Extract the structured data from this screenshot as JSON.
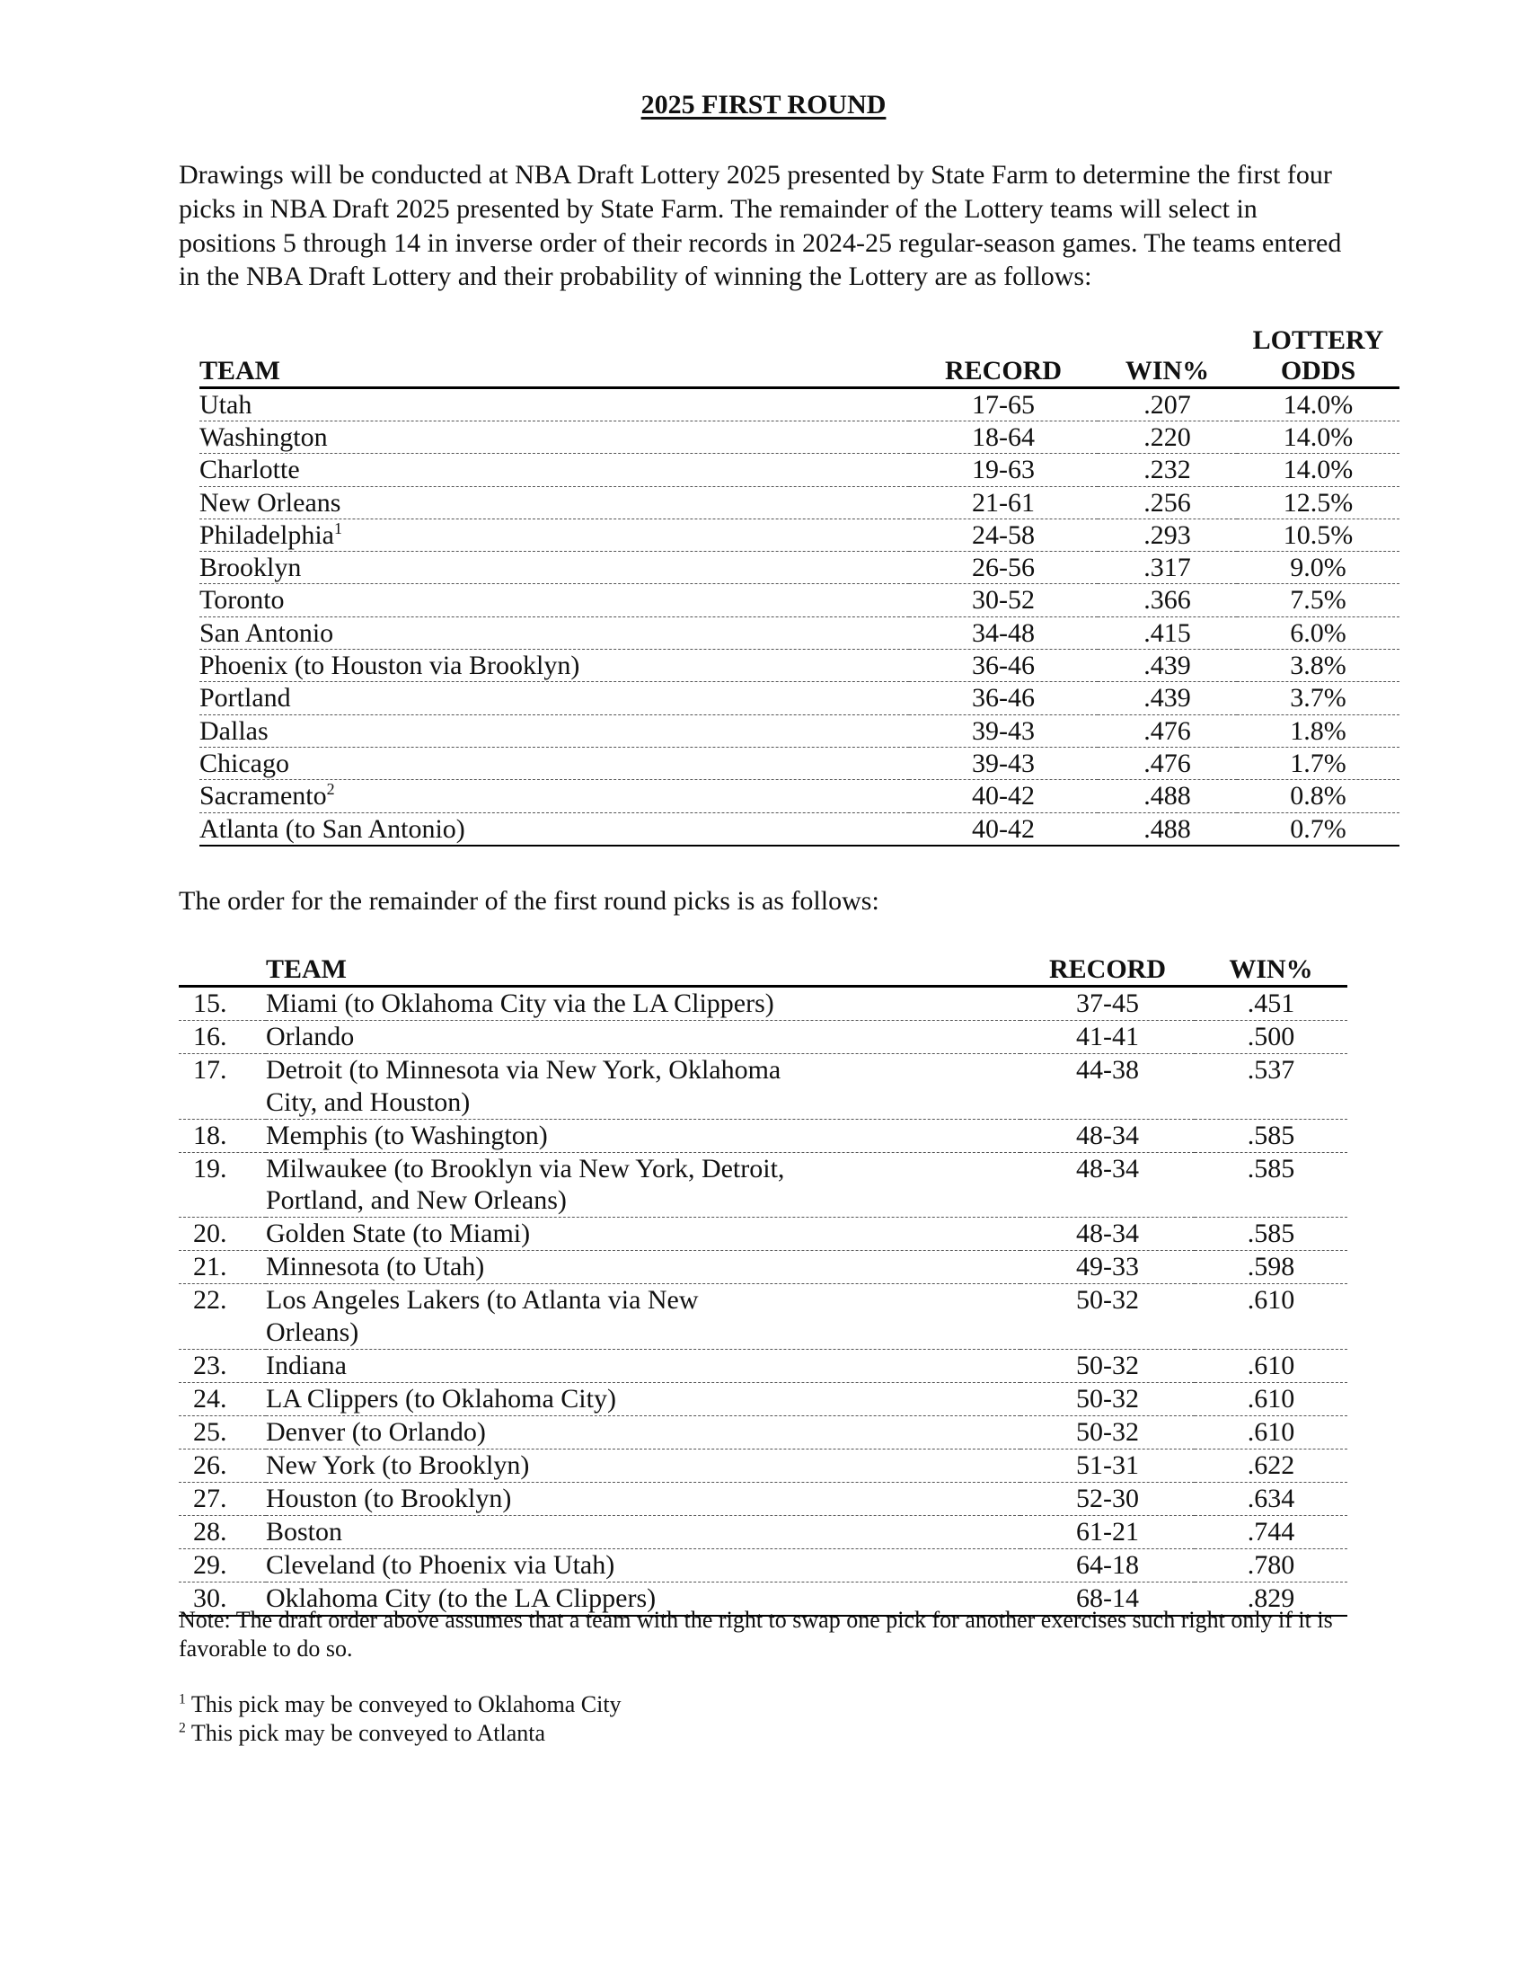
{
  "title": "2025 FIRST ROUND",
  "intro": "Drawings will be conducted at NBA Draft Lottery 2025 presented by State Farm to determine the first four picks in NBA Draft 2025 presented by State Farm. The remainder of the Lottery teams will select in positions 5 through 14 in inverse order of their records in 2024-25 regular-season games. The teams entered in the NBA Draft Lottery and their probability of winning the Lottery are as follows:",
  "lottery_table": {
    "headers": {
      "team": "TEAM",
      "record": "RECORD",
      "win": "WIN%",
      "odds_line1": "LOTTERY",
      "odds_line2": "ODDS"
    },
    "rows": [
      {
        "team": "Utah",
        "sup": "",
        "record": "17-65",
        "win": ".207",
        "odds": "14.0%"
      },
      {
        "team": "Washington",
        "sup": "",
        "record": "18-64",
        "win": ".220",
        "odds": "14.0%"
      },
      {
        "team": "Charlotte",
        "sup": "",
        "record": "19-63",
        "win": ".232",
        "odds": "14.0%"
      },
      {
        "team": "New Orleans",
        "sup": "",
        "record": "21-61",
        "win": ".256",
        "odds": "12.5%"
      },
      {
        "team": "Philadelphia",
        "sup": "1",
        "record": "24-58",
        "win": ".293",
        "odds": "10.5%"
      },
      {
        "team": "Brooklyn",
        "sup": "",
        "record": "26-56",
        "win": ".317",
        "odds": "9.0%"
      },
      {
        "team": "Toronto",
        "sup": "",
        "record": "30-52",
        "win": ".366",
        "odds": "7.5%"
      },
      {
        "team": "San Antonio",
        "sup": "",
        "record": "34-48",
        "win": ".415",
        "odds": "6.0%"
      },
      {
        "team": "Phoenix (to Houston via Brooklyn)",
        "sup": "",
        "record": "36-46",
        "win": ".439",
        "odds": "3.8%"
      },
      {
        "team": "Portland",
        "sup": "",
        "record": "36-46",
        "win": ".439",
        "odds": "3.7%"
      },
      {
        "team": "Dallas",
        "sup": "",
        "record": "39-43",
        "win": ".476",
        "odds": "1.8%"
      },
      {
        "team": "Chicago",
        "sup": "",
        "record": "39-43",
        "win": ".476",
        "odds": "1.7%"
      },
      {
        "team": "Sacramento",
        "sup": "2",
        "record": "40-42",
        "win": ".488",
        "odds": "0.8%"
      },
      {
        "team": "Atlanta (to San Antonio)",
        "sup": "",
        "record": "40-42",
        "win": ".488",
        "odds": "0.7%"
      }
    ]
  },
  "order_intro": "The order for the remainder of the first round picks is as follows:",
  "order_table": {
    "headers": {
      "team": "TEAM",
      "record": "RECORD",
      "win": "WIN%"
    },
    "rows": [
      {
        "pick": "15.",
        "team": "Miami (to Oklahoma City via the LA Clippers)",
        "record": "37-45",
        "win": ".451"
      },
      {
        "pick": "16.",
        "team": "Orlando",
        "record": "41-41",
        "win": ".500"
      },
      {
        "pick": "17.",
        "team": "Detroit (to Minnesota via New York, Oklahoma City, and Houston)",
        "record": "44-38",
        "win": ".537"
      },
      {
        "pick": "18.",
        "team": "Memphis (to Washington)",
        "record": "48-34",
        "win": ".585"
      },
      {
        "pick": "19.",
        "team": "Milwaukee (to Brooklyn via New York, Detroit, Portland, and New Orleans)",
        "record": "48-34",
        "win": ".585"
      },
      {
        "pick": "20.",
        "team": "Golden State (to Miami)",
        "record": "48-34",
        "win": ".585"
      },
      {
        "pick": "21.",
        "team": "Minnesota (to Utah)",
        "record": "49-33",
        "win": ".598"
      },
      {
        "pick": "22.",
        "team": "Los Angeles Lakers (to Atlanta via New Orleans)",
        "record": "50-32",
        "win": ".610"
      },
      {
        "pick": "23.",
        "team": "Indiana",
        "record": "50-32",
        "win": ".610"
      },
      {
        "pick": "24.",
        "team": "LA Clippers (to Oklahoma City)",
        "record": "50-32",
        "win": ".610"
      },
      {
        "pick": "25.",
        "team": "Denver (to Orlando)",
        "record": "50-32",
        "win": ".610"
      },
      {
        "pick": "26.",
        "team": "New York (to Brooklyn)",
        "record": "51-31",
        "win": ".622"
      },
      {
        "pick": "27.",
        "team": "Houston (to Brooklyn)",
        "record": "52-30",
        "win": ".634"
      },
      {
        "pick": "28.",
        "team": "Boston",
        "record": "61-21",
        "win": ".744"
      },
      {
        "pick": "29.",
        "team": "Cleveland (to Phoenix via Utah)",
        "record": "64-18",
        "win": ".780"
      },
      {
        "pick": "30.",
        "team": "Oklahoma City (to the LA Clippers)",
        "record": "68-14",
        "win": ".829"
      }
    ]
  },
  "note": "Note:  The draft order above assumes that a team with the right to swap one pick for another exercises such right only if it is favorable to do so.",
  "footnotes": [
    {
      "mark": "1",
      "text": " This pick may be conveyed to Oklahoma City"
    },
    {
      "mark": "2",
      "text": " This pick may be conveyed to Atlanta"
    }
  ]
}
